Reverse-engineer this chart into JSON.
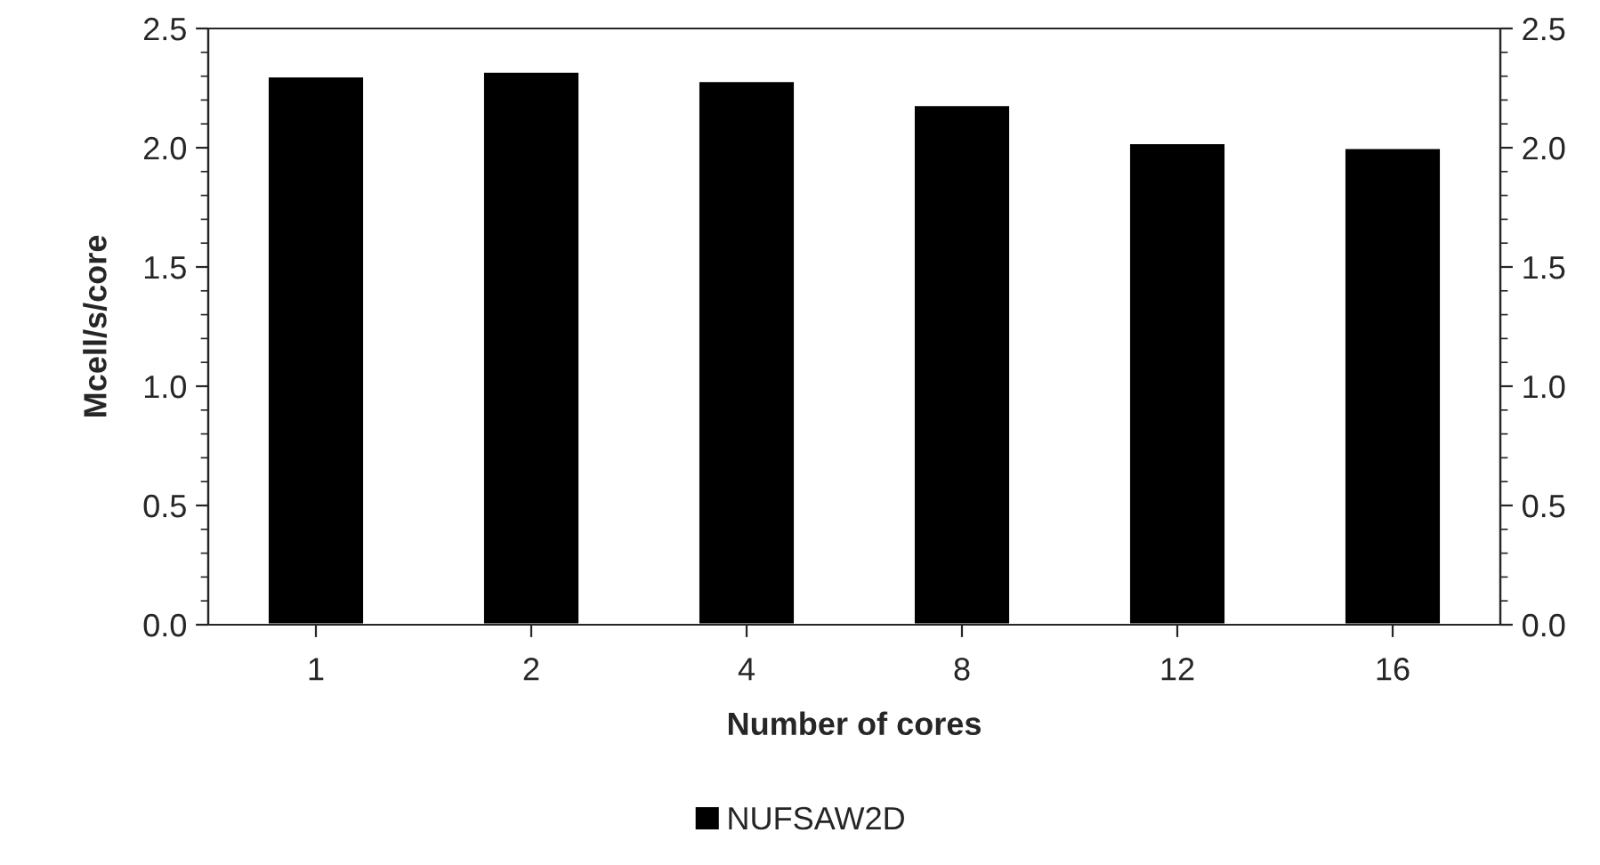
{
  "chart_data": {
    "type": "bar",
    "xlabel": "Number of cores",
    "ylabel": "Mcell/s/core",
    "categories": [
      "1",
      "2",
      "4",
      "8",
      "12",
      "16"
    ],
    "series": [
      {
        "name": "NUFSAW2D",
        "color": "#000000",
        "values": [
          2.3,
          2.32,
          2.28,
          2.18,
          2.02,
          2.0
        ]
      }
    ],
    "ylim": [
      0,
      2.5
    ],
    "yticks": [
      {
        "value": 0,
        "label": "0.0"
      },
      {
        "value": 0.5,
        "label": "0.5"
      },
      {
        "value": 1,
        "label": "1.0"
      },
      {
        "value": 1.5,
        "label": "1.5"
      },
      {
        "value": 2,
        "label": "2.0"
      },
      {
        "value": 2.5,
        "label": "2.5"
      }
    ],
    "y2lim": [
      0,
      2.5
    ],
    "y2ticks": [
      {
        "value": 0,
        "label": "0.0"
      },
      {
        "value": 0.5,
        "label": "0.5"
      },
      {
        "value": 1,
        "label": "1.0"
      },
      {
        "value": 1.5,
        "label": "1.5"
      },
      {
        "value": 2,
        "label": "2.0"
      },
      {
        "value": 2.5,
        "label": "2.5"
      }
    ],
    "grid": false,
    "legend": "bottom"
  }
}
